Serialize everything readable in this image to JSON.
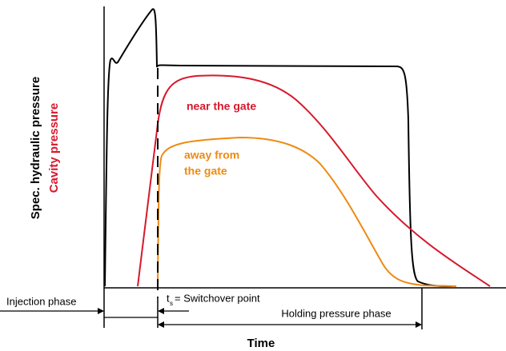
{
  "y_labels": {
    "primary": "Spec. hydraulic pressure",
    "secondary": "Cavity pressure"
  },
  "curve_labels": {
    "near": "near the gate",
    "away": [
      "away from",
      "the gate"
    ]
  },
  "phases": {
    "injection": "Injection phase",
    "switchover": {
      "symbol": "t",
      "subscript": "s",
      "text": "= Switchover point"
    },
    "holding": "Holding pressure phase"
  },
  "x_label": "Time"
}
